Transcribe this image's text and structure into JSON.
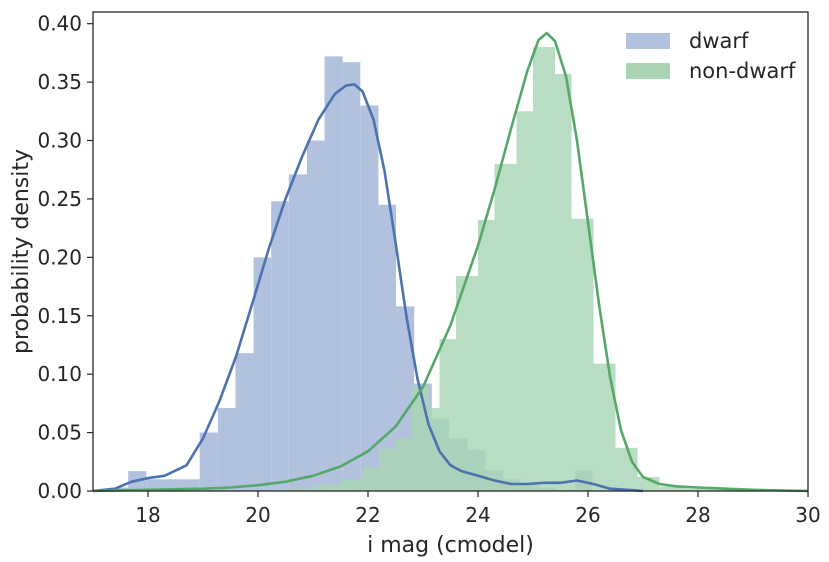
{
  "chart_data": {
    "type": "bar",
    "xlabel": "i mag (cmodel)",
    "ylabel": "probability density",
    "xlim": [
      17,
      30
    ],
    "ylim": [
      0,
      0.41
    ],
    "xticks": [
      18,
      20,
      22,
      24,
      26,
      28,
      30
    ],
    "xtick_labels": [
      "18",
      "20",
      "22",
      "24",
      "26",
      "28",
      "30"
    ],
    "yticks": [
      0.0,
      0.05,
      0.1,
      0.15,
      0.2,
      0.25,
      0.3,
      0.35,
      0.4
    ],
    "ytick_labels": [
      "0.00",
      "0.05",
      "0.10",
      "0.15",
      "0.20",
      "0.25",
      "0.30",
      "0.35",
      "0.40"
    ],
    "grid": false,
    "legend_position": "top-right",
    "series": [
      {
        "name": "dwarf",
        "bar_color": "#b1c1de",
        "line_color": "#4c72b0",
        "bins": [
          [
            17.32,
            17.64,
            0.003
          ],
          [
            17.64,
            17.97,
            0.017
          ],
          [
            17.97,
            18.29,
            0.01
          ],
          [
            18.29,
            18.62,
            0.01
          ],
          [
            18.62,
            18.94,
            0.01
          ],
          [
            18.94,
            19.27,
            0.05
          ],
          [
            19.27,
            19.59,
            0.071
          ],
          [
            19.59,
            19.92,
            0.118
          ],
          [
            19.92,
            20.24,
            0.2
          ],
          [
            20.24,
            20.56,
            0.248
          ],
          [
            20.56,
            20.89,
            0.271
          ],
          [
            20.89,
            21.21,
            0.3
          ],
          [
            21.21,
            21.54,
            0.372
          ],
          [
            21.54,
            21.86,
            0.367
          ],
          [
            21.86,
            22.19,
            0.33
          ],
          [
            22.19,
            22.51,
            0.245
          ],
          [
            22.51,
            22.84,
            0.158
          ],
          [
            22.84,
            23.16,
            0.092
          ],
          [
            23.16,
            23.48,
            0.062
          ],
          [
            23.48,
            23.81,
            0.045
          ],
          [
            23.81,
            24.13,
            0.035
          ],
          [
            24.13,
            24.46,
            0.018
          ],
          [
            24.46,
            24.78,
            0.01
          ],
          [
            24.78,
            25.11,
            0.005
          ],
          [
            25.11,
            25.43,
            0.003
          ],
          [
            25.43,
            25.76,
            0.001
          ],
          [
            25.76,
            26.08,
            0.018
          ]
        ],
        "kde_x": [
          17.0,
          17.4,
          17.7,
          18.0,
          18.3,
          18.7,
          19.0,
          19.3,
          19.6,
          19.9,
          20.2,
          20.5,
          20.8,
          21.1,
          21.4,
          21.6,
          21.75,
          21.9,
          22.1,
          22.3,
          22.5,
          22.7,
          22.9,
          23.1,
          23.3,
          23.5,
          23.7,
          24.0,
          24.3,
          24.6,
          24.9,
          25.2,
          25.5,
          25.8,
          26.1,
          26.4,
          26.7,
          27.0
        ],
        "kde_y": [
          0.0,
          0.002,
          0.008,
          0.011,
          0.013,
          0.022,
          0.045,
          0.077,
          0.115,
          0.161,
          0.208,
          0.25,
          0.286,
          0.318,
          0.34,
          0.347,
          0.348,
          0.342,
          0.318,
          0.274,
          0.213,
          0.149,
          0.096,
          0.057,
          0.034,
          0.022,
          0.017,
          0.013,
          0.009,
          0.006,
          0.006,
          0.007,
          0.007,
          0.009,
          0.006,
          0.002,
          0.001,
          0.0
        ]
      },
      {
        "name": "non-dwarf",
        "bar_color": "#aad5b4",
        "line_color": "#55a868",
        "bins": [
          [
            20.5,
            21.0,
            0.002
          ],
          [
            21.0,
            21.5,
            0.005
          ],
          [
            21.5,
            21.9,
            0.01
          ],
          [
            21.9,
            22.2,
            0.02
          ],
          [
            22.2,
            22.5,
            0.036
          ],
          [
            22.5,
            22.8,
            0.045
          ],
          [
            22.8,
            23.1,
            0.09
          ],
          [
            23.1,
            23.3,
            0.071
          ],
          [
            23.3,
            23.6,
            0.13
          ],
          [
            23.6,
            24.0,
            0.184
          ],
          [
            24.0,
            24.3,
            0.232
          ],
          [
            24.3,
            24.7,
            0.28
          ],
          [
            24.7,
            25.0,
            0.325
          ],
          [
            25.0,
            25.4,
            0.38
          ],
          [
            25.4,
            25.7,
            0.357
          ],
          [
            25.7,
            26.1,
            0.233
          ],
          [
            26.1,
            26.5,
            0.109
          ],
          [
            26.5,
            26.9,
            0.037
          ],
          [
            26.9,
            27.3,
            0.012
          ],
          [
            27.3,
            27.8,
            0.004
          ],
          [
            27.8,
            28.3,
            0.002
          ],
          [
            28.3,
            28.8,
            0.002
          ],
          [
            28.8,
            29.3,
            0.001
          ],
          [
            29.3,
            30.0,
            0.0005
          ]
        ],
        "kde_x": [
          17.0,
          18.0,
          19.0,
          19.5,
          20.0,
          20.5,
          21.0,
          21.5,
          22.0,
          22.5,
          23.0,
          23.5,
          24.0,
          24.3,
          24.6,
          24.9,
          25.1,
          25.25,
          25.4,
          25.6,
          25.8,
          26.0,
          26.2,
          26.4,
          26.6,
          26.8,
          27.0,
          27.3,
          27.6,
          28.0,
          28.5,
          29.0,
          30.0
        ],
        "kde_y": [
          0.0,
          0.001,
          0.002,
          0.003,
          0.005,
          0.008,
          0.013,
          0.021,
          0.034,
          0.055,
          0.089,
          0.142,
          0.21,
          0.258,
          0.31,
          0.36,
          0.386,
          0.392,
          0.385,
          0.355,
          0.3,
          0.23,
          0.16,
          0.098,
          0.052,
          0.025,
          0.012,
          0.006,
          0.004,
          0.003,
          0.002,
          0.001,
          0.0
        ]
      }
    ]
  }
}
